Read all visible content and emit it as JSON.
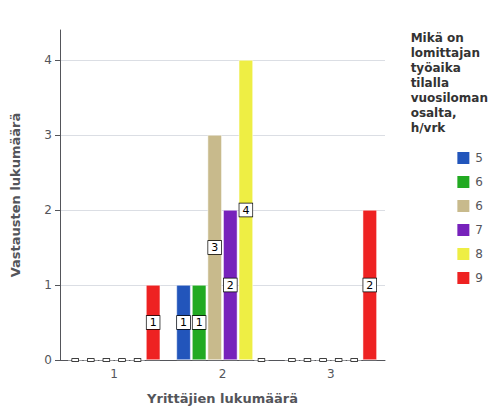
{
  "chart_data": {
    "type": "bar",
    "xlabel": "Yrittäjien lukumäärä",
    "ylabel": "Vastausten lukumäärä",
    "legend_title": "Mikä on\nlomittajan\ntyöaika\ntilalla\nvuosiloman\nosalta,\nh/vrk",
    "categories": [
      "1",
      "2",
      "3"
    ],
    "series": [
      {
        "name": "5",
        "color": "#2255bb",
        "values": [
          0,
          1,
          0
        ]
      },
      {
        "name": "6",
        "color": "#22aa22",
        "values": [
          0,
          1,
          0
        ]
      },
      {
        "name": "6",
        "color": "#c8ba8c",
        "values": [
          0,
          3,
          0
        ]
      },
      {
        "name": "7",
        "color": "#7722bb",
        "values": [
          0,
          2,
          0
        ]
      },
      {
        "name": "8",
        "color": "#eeee44",
        "values": [
          0,
          4,
          0
        ]
      },
      {
        "name": "9",
        "color": "#ee2222",
        "values": [
          1,
          0,
          2
        ]
      }
    ],
    "ylim": [
      0,
      4.4
    ],
    "yticks": [
      0,
      1,
      2,
      3,
      4
    ],
    "grid": true,
    "legend": "right",
    "data_labels": true
  }
}
